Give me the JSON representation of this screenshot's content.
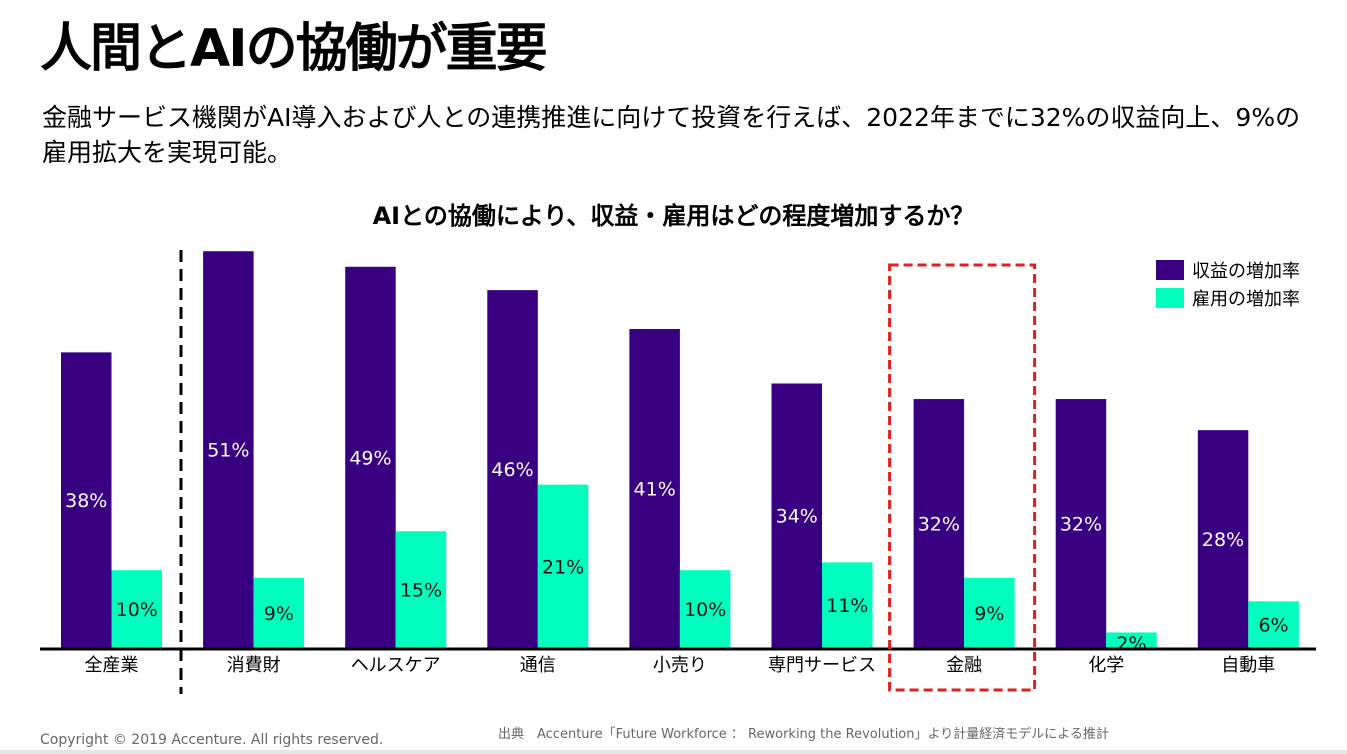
{
  "slide": {
    "title": "人間とAIの協働が重要",
    "subtitle": "金融サービス機関がAI導入および人との連携推進に向けて投資を行えば、2022年までに32%の収益向上、9%の雇用拡大を実現可能。",
    "copyright": "Copyright © 2019 Accenture. All rights reserved.",
    "source": "出典　Accenture「Future Workforce ： Reworking the Revolution」より計量経済モデルによる推計"
  },
  "colors": {
    "revenue": "#380080",
    "employment": "#00ffbe",
    "highlight": "#e0201e"
  },
  "chart_data": {
    "type": "bar",
    "title": "AIとの協働により、収益・雇用はどの程度増加するか？",
    "xlabel": "",
    "ylabel": "",
    "ylim": [
      0,
      52
    ],
    "grid": false,
    "legend_position": "top-right",
    "categories": [
      "全産業",
      "消費財",
      "ヘルスケア",
      "通信",
      "小売り",
      "専門サービス",
      "金融",
      "化学",
      "自動車"
    ],
    "series": [
      {
        "name": "収益の増加率",
        "values": [
          38,
          51,
          49,
          46,
          41,
          34,
          32,
          32,
          28
        ],
        "labels": [
          "38%",
          "51%",
          "49%",
          "46%",
          "41%",
          "34%",
          "32%",
          "32%",
          "28%"
        ]
      },
      {
        "name": "雇用の増加率",
        "values": [
          10,
          9,
          15,
          21,
          10,
          11,
          9,
          2,
          6
        ],
        "labels": [
          "10%",
          "9%",
          "15%",
          "21%",
          "10%",
          "11%",
          "9%",
          "2%",
          "6%"
        ]
      }
    ],
    "separator_after_category": "全産業",
    "highlighted_category": "金融"
  }
}
